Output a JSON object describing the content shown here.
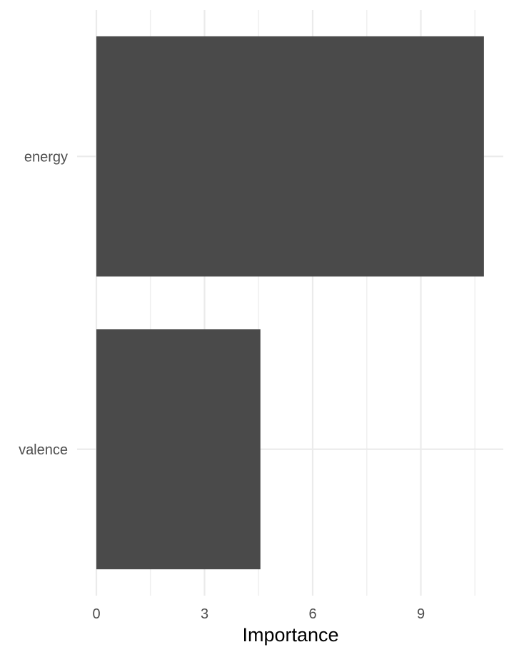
{
  "chart_data": {
    "type": "bar",
    "orientation": "horizontal",
    "categories": [
      "energy",
      "valence"
    ],
    "values": [
      10.75,
      4.55
    ],
    "xlabel": "Importance",
    "ylabel": "",
    "xlim": [
      0,
      11.3
    ],
    "x_ticks": [
      0,
      3,
      6,
      9
    ],
    "grid": true,
    "colors": {
      "bar": "#4a4a4a",
      "grid_major": "#ebebeb",
      "grid_minor": "#f0f0f0",
      "background": "#ffffff"
    }
  }
}
